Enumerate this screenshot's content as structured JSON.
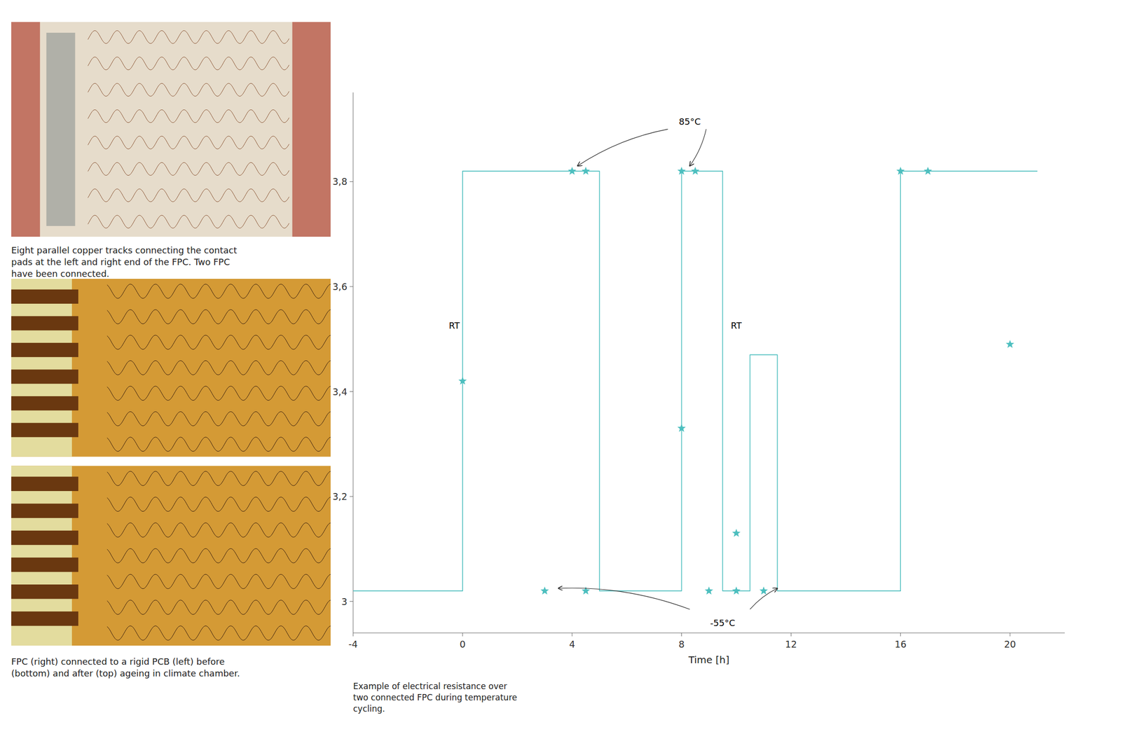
{
  "chart_data": {
    "type": "line",
    "xlabel": "Time [h]",
    "xlim": [
      -4,
      22
    ],
    "xticks": [
      -4,
      0,
      4,
      8,
      12,
      16,
      20
    ],
    "ylim": [
      2.94,
      3.97
    ],
    "yticks": [
      3,
      {
        "value": 3.2,
        "label": "3,2"
      },
      {
        "value": 3.4,
        "label": "3,4"
      },
      {
        "value": 3.6,
        "label": "3,6"
      },
      {
        "value": 3.8,
        "label": "3,8"
      }
    ],
    "grid": false,
    "series": [
      {
        "type": "line",
        "color": "#4dbfbf",
        "x": [
          -4,
          0,
          0,
          0,
          0,
          5,
          5,
          5,
          5,
          8,
          8,
          8,
          8,
          9.5,
          9.5,
          9.5,
          9.5,
          10.5,
          10.5,
          10.5,
          10.5,
          11.5,
          11.5,
          11.5,
          11.5,
          16,
          16,
          16,
          16,
          21
        ],
        "values": [
          3.02,
          3.02,
          3.02,
          3.82,
          3.82,
          3.82,
          3.82,
          3.02,
          3.02,
          3.02,
          3.02,
          3.82,
          3.82,
          3.82,
          3.82,
          3.02,
          3.02,
          3.02,
          3.02,
          3.47,
          3.47,
          3.47,
          3.47,
          3.02,
          3.02,
          3.02,
          3.02,
          3.82,
          3.82,
          3.82
        ]
      },
      {
        "type": "scatter",
        "marker": "star",
        "color": "#4dbfbf",
        "x": [
          0.0,
          4.0,
          4.5,
          3.0,
          4.5,
          8.0,
          8.0,
          8.5,
          9.0,
          10.0,
          11.0,
          10.0,
          16.0,
          17.0,
          20.0
        ],
        "values": [
          3.42,
          3.82,
          3.82,
          3.02,
          3.02,
          3.33,
          3.82,
          3.82,
          3.02,
          3.02,
          3.02,
          3.13,
          3.82,
          3.82,
          3.49
        ]
      }
    ],
    "annotations": [
      {
        "text": "85°C",
        "x": 8.3,
        "y": 3.905,
        "anchor": "bottom",
        "arrows": [
          {
            "from": [
              7.5,
              3.9
            ],
            "to": [
              4.2,
              3.83
            ]
          },
          {
            "from": [
              8.9,
              3.9
            ],
            "to": [
              8.3,
              3.83
            ]
          }
        ]
      },
      {
        "text": "-55°C",
        "x": 9.5,
        "y": 2.97,
        "anchor": "top",
        "arrows": [
          {
            "from": [
              8.3,
              2.985
            ],
            "to": [
              3.5,
              3.025
            ]
          },
          {
            "from": [
              10.5,
              2.985
            ],
            "to": [
              11.5,
              3.025
            ]
          }
        ]
      },
      {
        "text": "RT",
        "x": -0.5,
        "y": 3.52,
        "anchor": "baseline",
        "arrows": []
      },
      {
        "text": "RT",
        "x": 9.8,
        "y": 3.52,
        "anchor": "baseline",
        "arrows": []
      }
    ],
    "caption": "Example of electrical resistance over\ntwo connected FPC during temperature\ncycling."
  },
  "texts": {
    "caption_top": "Eight parallel copper tracks connecting the contact\npads at the left and right end of the FPC. Two FPC\nhave been connected.",
    "caption_bottom": "FPC (right) connected to a rigid PCB (left) before\n(bottom) and after (top) ageing in climate chamber."
  }
}
